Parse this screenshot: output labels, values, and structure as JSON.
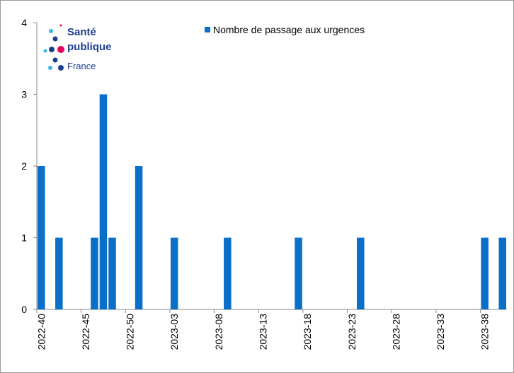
{
  "logo": [
    "Santé",
    "publique",
    "France"
  ],
  "chart_data": {
    "type": "bar",
    "categories": [
      "2022-40",
      null,
      null,
      null,
      null,
      "2022-45",
      null,
      null,
      null,
      null,
      "2022-50",
      null,
      null,
      null,
      null,
      "2023-03",
      null,
      null,
      null,
      null,
      "2023-08",
      null,
      null,
      null,
      null,
      "2023-13",
      null,
      null,
      null,
      null,
      "2023-18",
      null,
      null,
      null,
      null,
      "2023-23",
      null,
      null,
      null,
      null,
      "2023-28",
      null,
      null,
      null,
      null,
      "2023-33",
      null,
      null,
      null,
      null,
      "2023-38",
      null,
      null
    ],
    "series": [
      {
        "name": "Nombre de passage aux urgences",
        "color": "#0a6fc8",
        "values": [
          2,
          0,
          1,
          0,
          0,
          0,
          1,
          3,
          1,
          0,
          0,
          2,
          0,
          0,
          0,
          1,
          0,
          0,
          0,
          0,
          0,
          1,
          0,
          0,
          0,
          0,
          0,
          0,
          0,
          1,
          0,
          0,
          0,
          0,
          0,
          0,
          1,
          0,
          0,
          0,
          0,
          0,
          0,
          0,
          0,
          0,
          0,
          0,
          0,
          0,
          1,
          0,
          1
        ]
      }
    ],
    "ylim": [
      0,
      4
    ],
    "yticks": [
      0,
      1,
      2,
      3,
      4
    ],
    "grid": false
  }
}
